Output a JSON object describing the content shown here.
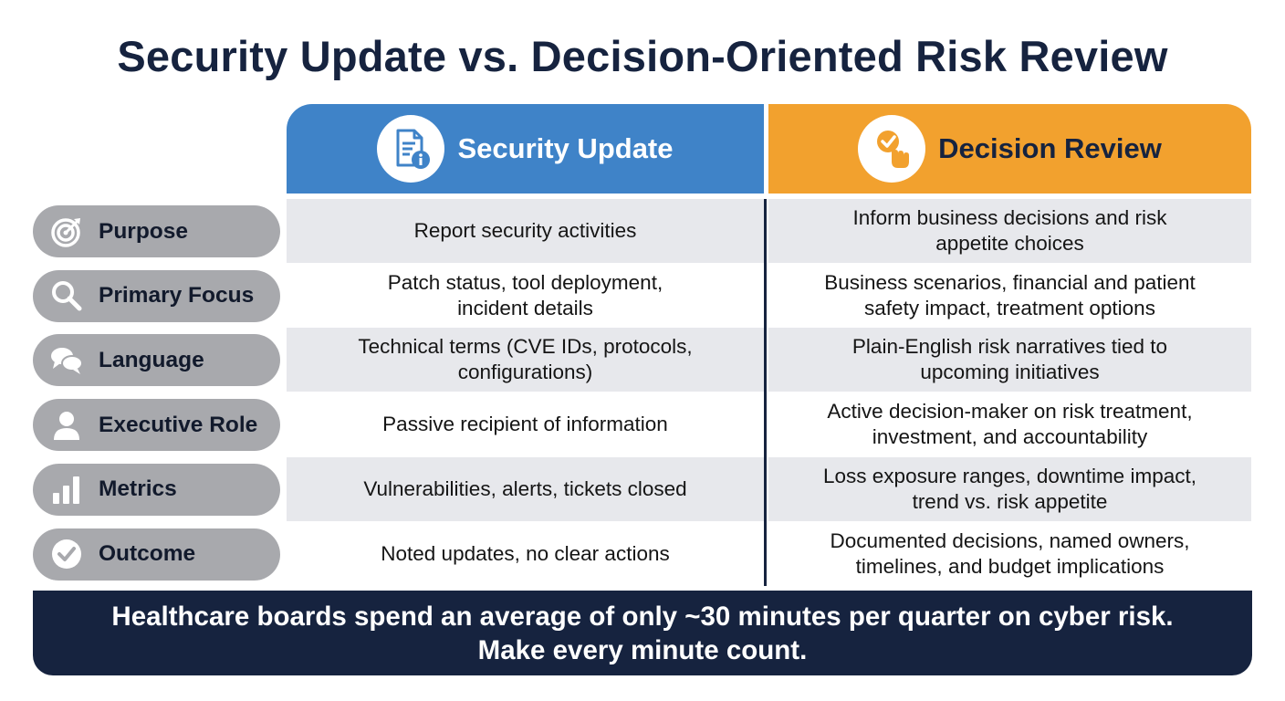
{
  "title": "Security Update vs. Decision-Oriented Risk Review",
  "columns": {
    "security": {
      "label": "Security Update",
      "icon": "document-info-icon",
      "color": "#3f83c8"
    },
    "decision": {
      "label": "Decision Review",
      "icon": "hand-checkmark-icon",
      "color": "#f2a12e"
    }
  },
  "rows": [
    {
      "label": "Purpose",
      "icon": "target-icon",
      "security": "Report security activities",
      "decision": [
        "Inform business decisions and risk",
        "appetite choices"
      ]
    },
    {
      "label": "Primary Focus",
      "icon": "search-icon",
      "security": [
        "Patch status, tool deployment,",
        "incident details"
      ],
      "decision": [
        "Business scenarios, financial and patient",
        "safety impact, treatment options"
      ]
    },
    {
      "label": "Language",
      "icon": "speech-bubbles-icon",
      "security": [
        "Technical terms (CVE IDs, protocols,",
        "configurations)"
      ],
      "decision": [
        "Plain-English risk narratives tied to",
        "upcoming initiatives"
      ]
    },
    {
      "label": "Executive Role",
      "icon": "person-icon",
      "security": "Passive recipient of information",
      "decision": [
        "Active decision-maker on risk treatment,",
        "investment, and accountability"
      ]
    },
    {
      "label": "Metrics",
      "icon": "bar-chart-icon",
      "security": "Vulnerabilities, alerts, tickets closed",
      "decision": [
        "Loss exposure ranges, downtime impact,",
        "trend vs. risk appetite"
      ]
    },
    {
      "label": "Outcome",
      "icon": "check-circle-icon",
      "security": "Noted updates, no clear actions",
      "decision": [
        "Documented decisions, named owners,",
        "timelines, and budget implications"
      ]
    }
  ],
  "banner": {
    "line1": "Healthcare boards spend an average of only ~30 minutes per quarter on cyber risk.",
    "line2": "Make every minute count."
  },
  "colors": {
    "navy": "#16233f",
    "pill": "#a8a9ad",
    "stripe": "#e7e8ec"
  }
}
